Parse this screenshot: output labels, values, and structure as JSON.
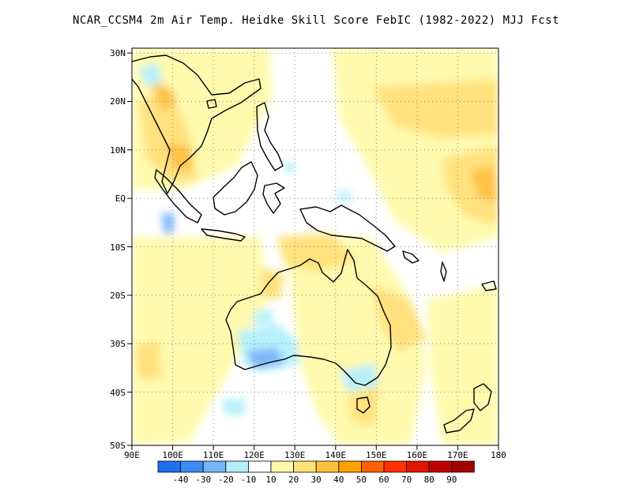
{
  "title": "NCAR_CCSM4  2m Air Temp. Heidke Skill Score FebIC (1982-2022) MJJ Fcst",
  "map": {
    "lon_range": [
      90,
      180
    ],
    "lat_range": [
      -50,
      32
    ],
    "lon_ticks": [
      {
        "value": 90,
        "label": "90E"
      },
      {
        "value": 100,
        "label": "100E"
      },
      {
        "value": 110,
        "label": "110E"
      },
      {
        "value": 120,
        "label": "120E"
      },
      {
        "value": 130,
        "label": "130E"
      },
      {
        "value": 140,
        "label": "140E"
      },
      {
        "value": 150,
        "label": "150E"
      },
      {
        "value": 160,
        "label": "160E"
      },
      {
        "value": 170,
        "label": "170E"
      },
      {
        "value": 180,
        "label": "180"
      }
    ],
    "lat_ticks": [
      {
        "value": 30,
        "label": "30N"
      },
      {
        "value": 20,
        "label": "20N"
      },
      {
        "value": 10,
        "label": "10N"
      },
      {
        "value": 0,
        "label": "EQ"
      },
      {
        "value": -10,
        "label": "10S"
      },
      {
        "value": -20,
        "label": "20S"
      },
      {
        "value": -30,
        "label": "30S"
      },
      {
        "value": -40,
        "label": "40S"
      },
      {
        "value": -50,
        "label": "50S"
      }
    ],
    "grid": true
  },
  "colorbar": {
    "colors": [
      "#1e6ef0",
      "#3c8cf5",
      "#78b4fa",
      "#b4f0fa",
      "#ffffff",
      "#fffaaa",
      "#ffe178",
      "#ffc03c",
      "#ffa000",
      "#ff6000",
      "#ff3200",
      "#e11400",
      "#c00000",
      "#a50000"
    ],
    "labels": [
      "-40",
      "-30",
      "-20",
      "-10",
      "10",
      "20",
      "30",
      "40",
      "50",
      "60",
      "70",
      "80",
      "90"
    ]
  }
}
